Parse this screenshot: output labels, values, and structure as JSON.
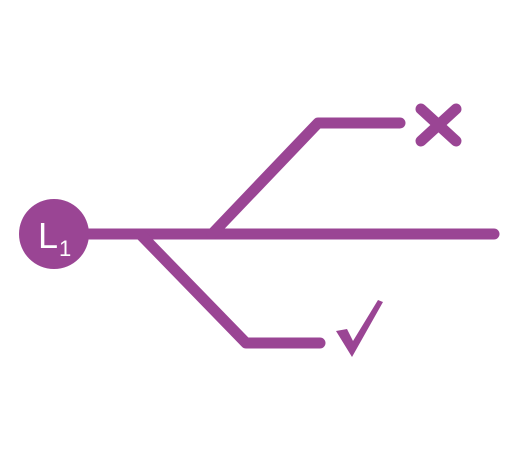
{
  "node": {
    "label": "L",
    "subscript": "1"
  },
  "outcomes": {
    "upper": "cross",
    "middle": "continue",
    "lower": "check"
  },
  "icons": {
    "upper": "cross-icon",
    "lower": "check-icon"
  },
  "colors": {
    "accent": "#9a4594",
    "background": "#ffffff",
    "label": "#ffffff"
  }
}
